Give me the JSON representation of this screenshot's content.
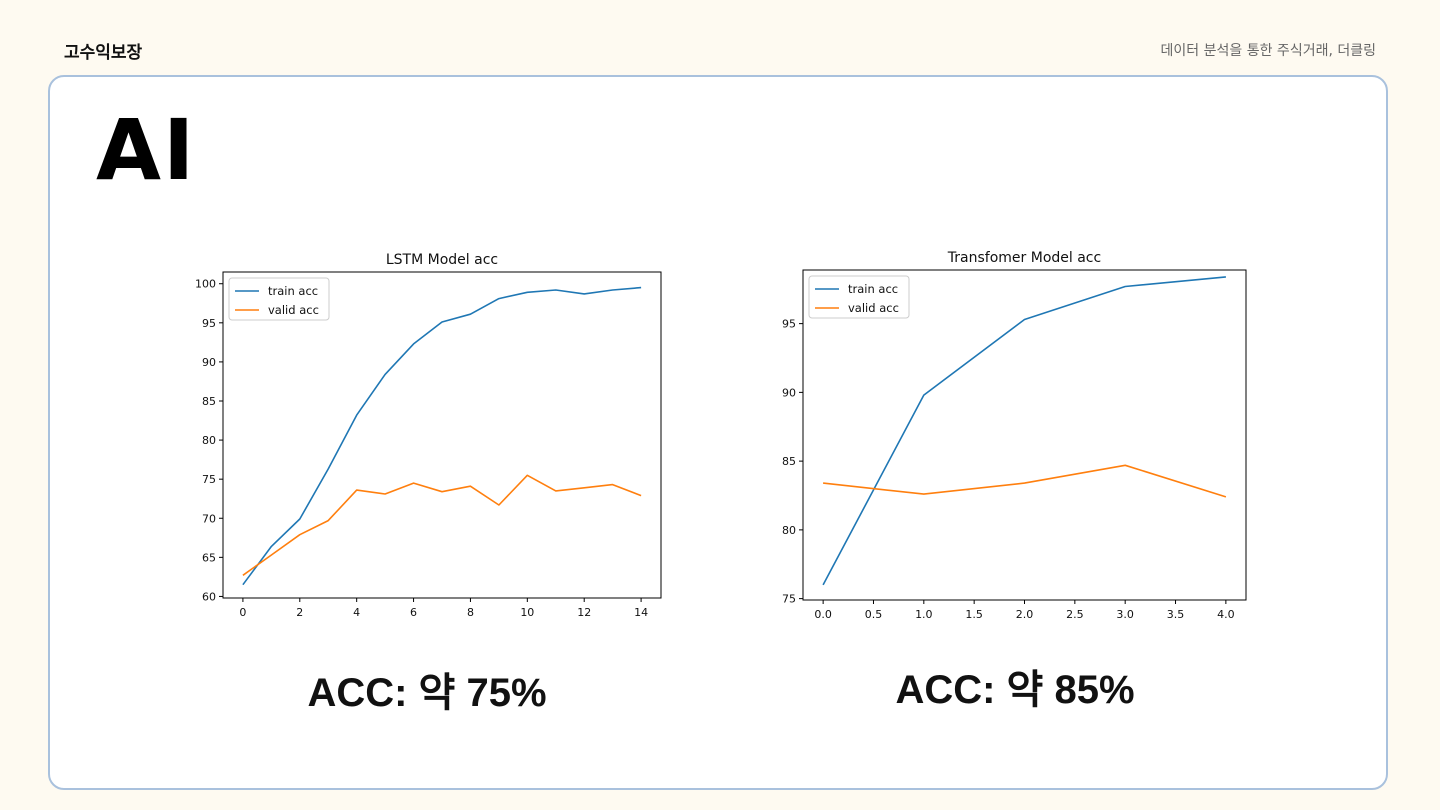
{
  "header": {
    "brand": "고수익보장",
    "tagline": "데이터 분석을 통한 주식거래, 더클링"
  },
  "slide": {
    "heading": "AI",
    "lstm_caption": "ACC: 약 75%",
    "transformer_caption": "ACC: 약 85%"
  },
  "colors": {
    "train": "#1f77b4",
    "valid": "#ff7f0e",
    "border": "#a9c1dd"
  },
  "chart_data": [
    {
      "type": "line",
      "title": "LSTM Model acc",
      "xlabel": "",
      "ylabel": "",
      "xlim": [
        -0.7,
        14.7
      ],
      "ylim": [
        59.8,
        101.5
      ],
      "xticks": [
        0,
        2,
        4,
        6,
        8,
        10,
        12,
        14
      ],
      "yticks": [
        60,
        65,
        70,
        75,
        80,
        85,
        90,
        95,
        100
      ],
      "x": [
        0,
        1,
        2,
        3,
        4,
        5,
        6,
        7,
        8,
        9,
        10,
        11,
        12,
        13,
        14
      ],
      "series": [
        {
          "name": "train acc",
          "values": [
            61.5,
            66.4,
            69.9,
            76.3,
            83.2,
            88.4,
            92.3,
            95.1,
            96.1,
            98.1,
            98.9,
            99.2,
            98.7,
            99.2,
            99.5
          ]
        },
        {
          "name": "valid acc",
          "values": [
            62.7,
            65.3,
            67.9,
            69.7,
            73.6,
            73.1,
            74.5,
            73.4,
            74.1,
            71.7,
            75.5,
            73.5,
            73.9,
            74.3,
            72.9
          ]
        }
      ],
      "legend": "top-left"
    },
    {
      "type": "line",
      "title": "Transfomer Model acc",
      "xlabel": "",
      "ylabel": "",
      "xlim": [
        -0.2,
        4.2
      ],
      "ylim": [
        74.9,
        98.9
      ],
      "xticks": [
        0.0,
        0.5,
        1.0,
        1.5,
        2.0,
        2.5,
        3.0,
        3.5,
        4.0
      ],
      "xtick_labels": [
        "0.0",
        "0.5",
        "1.0",
        "1.5",
        "2.0",
        "2.5",
        "3.0",
        "3.5",
        "4.0"
      ],
      "yticks": [
        75,
        80,
        85,
        90,
        95
      ],
      "x": [
        0,
        1,
        2,
        3,
        4
      ],
      "series": [
        {
          "name": "train acc",
          "values": [
            76.0,
            89.8,
            95.3,
            97.7,
            98.4
          ]
        },
        {
          "name": "valid acc",
          "values": [
            83.4,
            82.6,
            83.4,
            84.7,
            82.4
          ]
        }
      ],
      "legend": "top-left"
    }
  ]
}
